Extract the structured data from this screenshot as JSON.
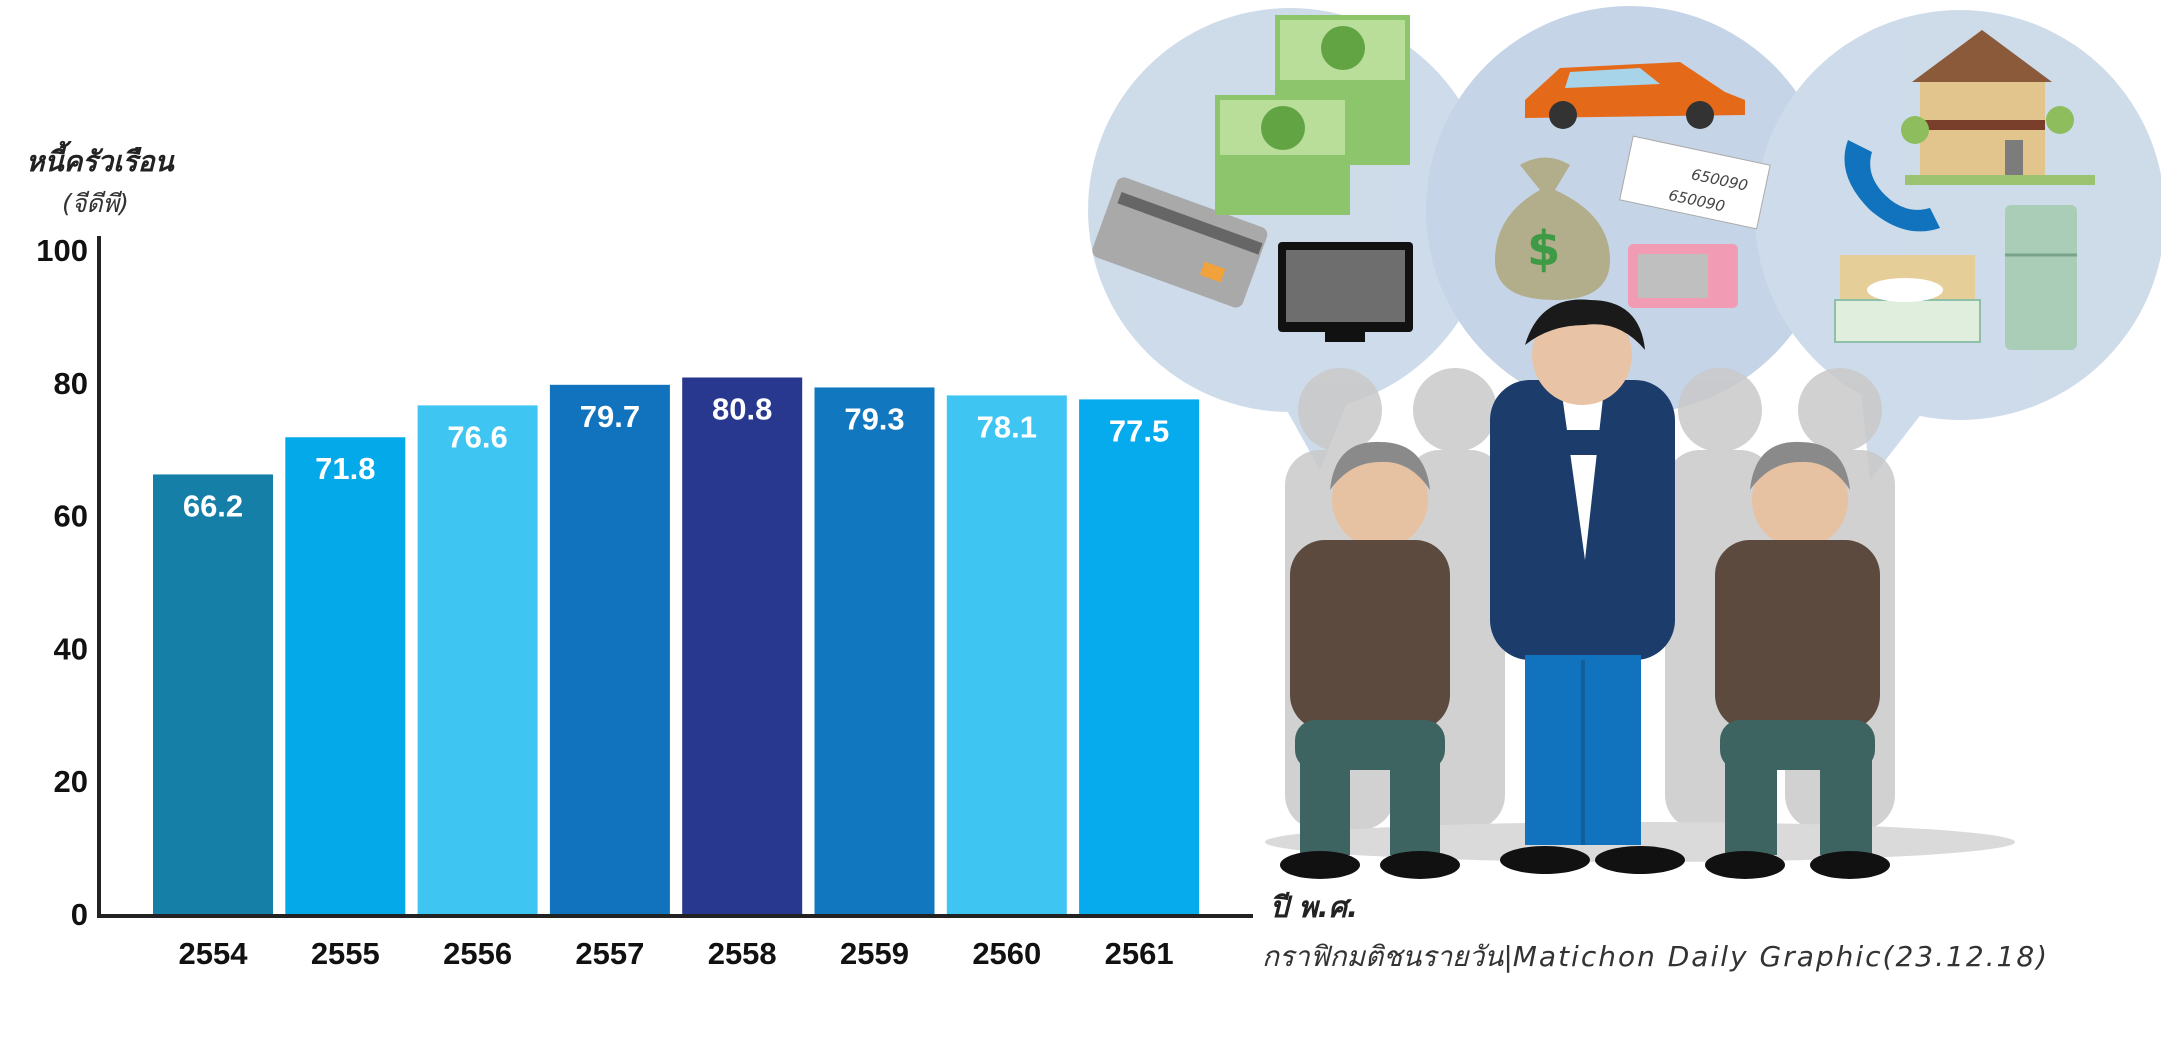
{
  "chart_data": {
    "type": "bar",
    "ylabel": "หนี้ครัวเรือน",
    "yunit": "(จีดีพี)",
    "xlabel": "ปี พ.ศ.",
    "categories": [
      "2554",
      "2555",
      "2556",
      "2557",
      "2558",
      "2559",
      "2560",
      "2561"
    ],
    "values": [
      66.2,
      71.8,
      76.6,
      79.7,
      80.8,
      79.3,
      78.1,
      77.5
    ],
    "value_labels": [
      "66.2",
      "71.8",
      "76.6",
      "79.7",
      "80.8",
      "79.3",
      "78.1",
      "77.5"
    ],
    "bar_colors": [
      "#167fa8",
      "#04a9ea",
      "#3fc5f2",
      "#1173bd",
      "#28388f",
      "#1177bf",
      "#3fc5f2",
      "#05abed"
    ],
    "ylim": [
      0,
      100
    ],
    "yticks": [
      "0",
      "20",
      "40",
      "60",
      "80",
      "100"
    ],
    "grid": false,
    "legend": "none"
  },
  "credit": {
    "thai": "กราฟิกมติชนรายวัน",
    "separator": "|",
    "latin": "Matichon  Daily  Graphic(23.12.18)"
  },
  "illustration": {
    "description_icons": [
      "credit-card-icon",
      "money-stack-icon",
      "tv-icon",
      "car-icon",
      "money-bag-icon",
      "bill-icon",
      "microwave-icon",
      "house-icon",
      "phone-icon",
      "bed-icon",
      "fridge-icon"
    ],
    "bill_text": "650090"
  }
}
